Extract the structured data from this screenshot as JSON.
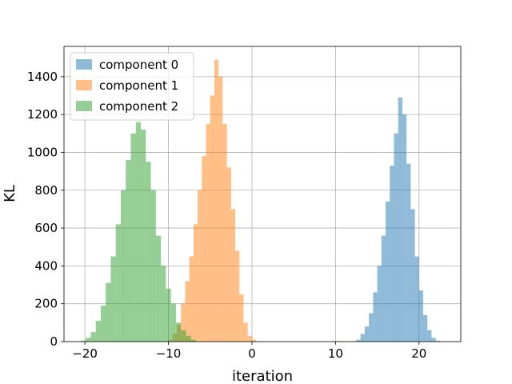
{
  "chart_data": {
    "type": "histogram",
    "xlabel": "iteration",
    "ylabel": "KL",
    "xlim": [
      -22.5,
      25
    ],
    "ylim": [
      0,
      1560
    ],
    "grid": true,
    "legend_position": "top-left",
    "x_ticks": [
      -20,
      -10,
      0,
      10,
      20
    ],
    "x_tick_labels": [
      "−20",
      "−10",
      "0",
      "10",
      "20"
    ],
    "y_ticks": [
      0,
      200,
      400,
      600,
      800,
      1000,
      1200,
      1400
    ],
    "y_tick_labels": [
      "0",
      "200",
      "400",
      "600",
      "800",
      "1000",
      "1200",
      "1400"
    ],
    "series": [
      {
        "name": "component 0",
        "color": "#1f77b4",
        "opacity": 0.5,
        "bin_start": 12.5,
        "bin_width": 0.5,
        "counts": [
          10,
          40,
          80,
          150,
          260,
          400,
          560,
          740,
          930,
          1100,
          1290,
          1200,
          940,
          700,
          450,
          270,
          140,
          60,
          20,
          5
        ]
      },
      {
        "name": "component 1",
        "color": "#ff7f0e",
        "opacity": 0.5,
        "bin_start": -10,
        "bin_width": 0.5,
        "counts": [
          10,
          40,
          90,
          200,
          320,
          450,
          620,
          800,
          980,
          1150,
          1300,
          1490,
          1400,
          1150,
          920,
          700,
          480,
          250,
          100,
          30,
          10
        ]
      },
      {
        "name": "component 2",
        "color": "#2ca02c",
        "opacity": 0.5,
        "bin_start": -20.5,
        "bin_width": 0.6,
        "counts": [
          5,
          20,
          50,
          110,
          190,
          310,
          450,
          620,
          800,
          960,
          1100,
          1160,
          1120,
          950,
          800,
          560,
          400,
          280,
          200,
          100,
          60,
          30,
          10
        ]
      }
    ]
  }
}
